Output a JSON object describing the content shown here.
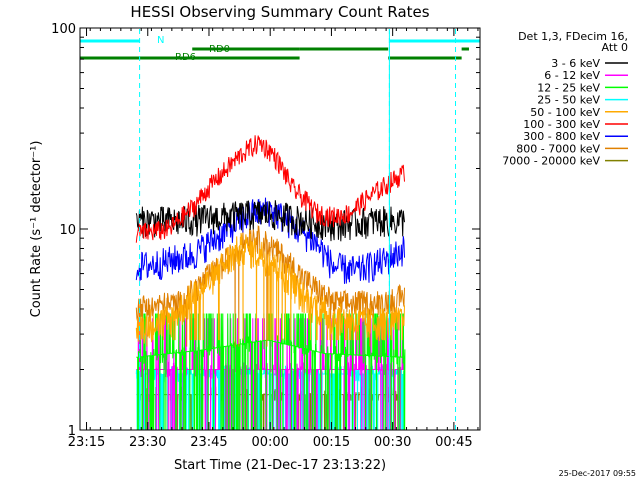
{
  "chart_data": {
    "type": "line",
    "title": "HESSI Observing Summary Count Rates",
    "xlabel": "Start Time (21-Dec-17 23:13:22)",
    "ylabel": "Count Rate (s⁻¹ detector⁻¹)",
    "y_scale": "log",
    "ylim": [
      1,
      100
    ],
    "x_unit": "minutes after 23:13:22",
    "xlim": [
      0,
      98
    ],
    "x_ticks": [
      {
        "label": "23:15",
        "value": 1.6
      },
      {
        "label": "23:30",
        "value": 16.6
      },
      {
        "label": "23:45",
        "value": 31.6
      },
      {
        "label": "00:00",
        "value": 46.6
      },
      {
        "label": "00:15",
        "value": 61.6
      },
      {
        "label": "00:30",
        "value": 76.6
      },
      {
        "label": "00:45",
        "value": 91.6
      }
    ],
    "y_ticks": [
      {
        "label": "1",
        "value": 1
      },
      {
        "label": "10",
        "value": 10
      },
      {
        "label": "100",
        "value": 100
      }
    ],
    "legend_header": [
      "Det 1,3, FDecim 16,",
      "Att 0"
    ],
    "legend_position": "right",
    "series": [
      {
        "name": "3 - 6 keV",
        "color": "#000000",
        "x": [
          13.8,
          25,
          35,
          46,
          55,
          63,
          72,
          79.5
        ],
        "values": [
          11,
          11,
          11.5,
          12,
          11,
          10.5,
          11,
          11
        ]
      },
      {
        "name": "6 - 12 keV",
        "color": "#ff00ff",
        "x": [
          13.8,
          30,
          46,
          60,
          79.5
        ],
        "values": [
          2,
          2,
          2,
          2,
          2
        ]
      },
      {
        "name": "12 - 25 keV",
        "color": "#00ff00",
        "x": [
          13.8,
          30,
          46,
          60,
          79.5
        ],
        "values": [
          2.3,
          2.5,
          2.8,
          2.4,
          2.3
        ]
      },
      {
        "name": "25 - 50 keV",
        "color": "#00ffff",
        "x": [
          13.8,
          30,
          46,
          60,
          79.5
        ],
        "values": [
          1.9,
          1.9,
          1.9,
          1.9,
          1.9
        ]
      },
      {
        "name": "50 - 100 keV",
        "color": "#ffaa00",
        "x": [
          13.8,
          22,
          30,
          40,
          47,
          55,
          62,
          70,
          79.5
        ],
        "values": [
          3.3,
          3.5,
          5,
          8.2,
          7,
          4.5,
          3.6,
          3.4,
          3.5
        ]
      },
      {
        "name": "100 - 300 keV",
        "color": "#ff0000",
        "x": [
          13.8,
          22,
          28,
          35,
          40,
          44,
          47,
          52,
          58,
          62,
          66,
          72,
          79.5
        ],
        "values": [
          9.5,
          10,
          13,
          19,
          24,
          27,
          24,
          16,
          12,
          11.5,
          12,
          15,
          19
        ]
      },
      {
        "name": "300 - 800 keV",
        "color": "#0000ff",
        "x": [
          13.8,
          20,
          28,
          35,
          42,
          47,
          52,
          58,
          62,
          68,
          75,
          79.5
        ],
        "values": [
          6.5,
          6.8,
          7.5,
          9.5,
          12,
          12.5,
          10.5,
          8.5,
          6.5,
          6.2,
          7,
          8
        ]
      },
      {
        "name": "800 - 7000 keV",
        "color": "#e08000",
        "x": [
          13.8,
          25,
          35,
          42,
          47,
          55,
          62,
          72,
          79.5
        ],
        "values": [
          4,
          4.2,
          6.5,
          9.2,
          8,
          5.5,
          4.2,
          4.2,
          4.5
        ]
      },
      {
        "name": "7000 - 20000 keV",
        "color": "#808000",
        "x": [
          13.8,
          30,
          46,
          60,
          79.5
        ],
        "values": [
          1.5,
          1.5,
          1.5,
          1.5,
          1.5
        ]
      }
    ],
    "status_bars": [
      {
        "label": "N",
        "color": "#00ffff",
        "segments": [
          [
            0,
            14.6
          ],
          [
            75.8,
            98
          ]
        ]
      },
      {
        "label": "RD0",
        "color": "#008000",
        "segments": [
          [
            27.5,
            53.8
          ],
          [
            53.8,
            75.5
          ],
          [
            93.5,
            95.3
          ]
        ]
      },
      {
        "label": "RD6",
        "color": "#008000",
        "segments": [
          [
            0,
            27.5
          ],
          [
            27.5,
            53.8
          ],
          [
            75.5,
            93.5
          ]
        ]
      }
    ],
    "vertical_markers": [
      {
        "x": 14.6,
        "style": "dashed",
        "color": "#00ffff"
      },
      {
        "x": 75.8,
        "style": "solid",
        "color": "#00ffff"
      },
      {
        "x": 75.8,
        "style": "dashed",
        "color": "#00ffff"
      },
      {
        "x": 92.0,
        "style": "dashed",
        "color": "#00ffff"
      }
    ]
  },
  "footer_date": "25-Dec-2017 09:55"
}
